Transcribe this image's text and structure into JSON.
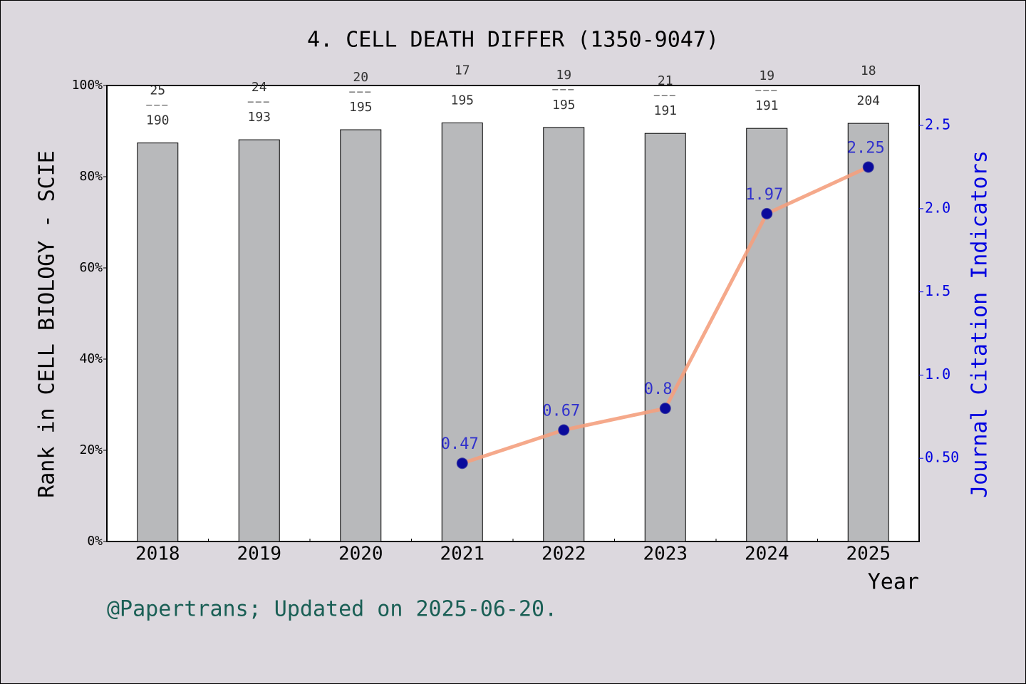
{
  "chart_data": {
    "type": "bar-line",
    "title": "4. CELL DEATH DIFFER (1350-9047)",
    "y_label": "Rank in CELL BIOLOGY - SCIE",
    "y2_label": "Journal Citation Indicators",
    "x_label": "Year",
    "footer": "@Papertrans; Updated on 2025-06-20.",
    "categories": [
      "2018",
      "2019",
      "2020",
      "2021",
      "2022",
      "2023",
      "2024",
      "2025"
    ],
    "rank": [
      25,
      24,
      20,
      17,
      19,
      21,
      19,
      18
    ],
    "total": [
      190,
      193,
      195,
      195,
      195,
      191,
      191,
      204
    ],
    "series": [
      {
        "type": "bar",
        "color": "#b8b9bb",
        "values": [
          87.4,
          88.1,
          90.3,
          91.8,
          90.8,
          89.5,
          90.6,
          91.7
        ]
      },
      {
        "type": "line",
        "axis": "y2",
        "color": "#f4a07e",
        "marker_color": "#0a0a9c",
        "label_color": "#1a1ad0",
        "values": [
          null,
          null,
          null,
          0.47,
          0.67,
          0.8,
          1.97,
          2.25
        ]
      }
    ],
    "ylim": [
      0,
      100
    ],
    "yticks": [
      {
        "value": 0,
        "label": "0%"
      },
      {
        "value": 20,
        "label": "20%"
      },
      {
        "value": 40,
        "label": "40%"
      },
      {
        "value": 60,
        "label": "60%"
      },
      {
        "value": 80,
        "label": "80%"
      },
      {
        "value": 100,
        "label": "100%"
      }
    ],
    "y2lim": [
      0,
      2.74
    ],
    "y2ticks": [
      {
        "value": 0.5,
        "label": "0.50"
      },
      {
        "value": 1,
        "label": "1.0"
      },
      {
        "value": 1.5,
        "label": "1.5"
      },
      {
        "value": 2,
        "label": "2.0"
      },
      2.5
    ]
  }
}
